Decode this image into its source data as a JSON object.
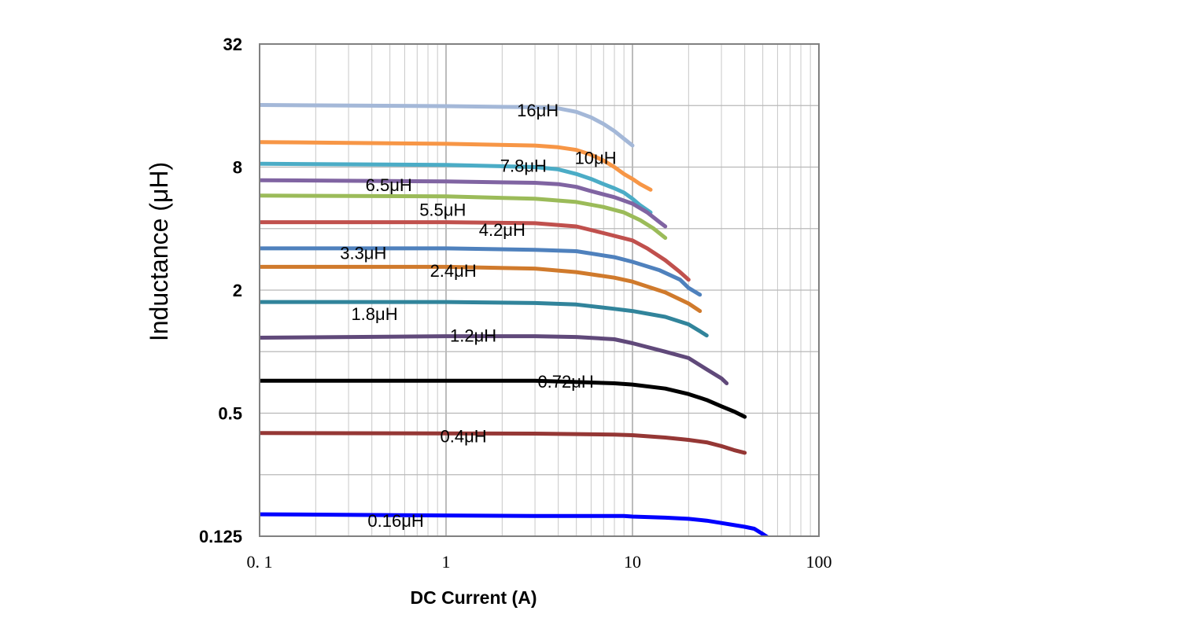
{
  "chart_data": {
    "type": "line",
    "xlabel": "DC Current (A)",
    "ylabel": "Inductance (μH)",
    "x_scale": "log",
    "y_scale": "log2",
    "xlim": [
      0.1,
      100
    ],
    "ylim": [
      0.125,
      32
    ],
    "x_ticks": [
      {
        "value": 0.1,
        "label": "0. 1"
      },
      {
        "value": 1,
        "label": "1"
      },
      {
        "value": 10,
        "label": "10"
      },
      {
        "value": 100,
        "label": "100"
      }
    ],
    "y_ticks": [
      {
        "value": 0.125,
        "label": "0.125"
      },
      {
        "value": 0.5,
        "label": "0.5"
      },
      {
        "value": 2,
        "label": "2"
      },
      {
        "value": 8,
        "label": "8"
      },
      {
        "value": 32,
        "label": "32"
      }
    ],
    "grid": true,
    "series": [
      {
        "name": "16μH",
        "color": "#a4b8d8",
        "label_at": [
          2.4,
          15.2
        ],
        "points": [
          [
            0.1,
            16.1
          ],
          [
            1,
            15.9
          ],
          [
            3,
            15.7
          ],
          [
            4,
            15.5
          ],
          [
            5,
            14.9
          ],
          [
            6,
            14.0
          ],
          [
            7,
            13.0
          ],
          [
            8,
            12.0
          ],
          [
            9,
            11.0
          ],
          [
            10,
            10.2
          ]
        ]
      },
      {
        "name": "10μH",
        "color": "#f79646",
        "label_at": [
          4.9,
          8.9
        ],
        "points": [
          [
            0.1,
            10.6
          ],
          [
            1,
            10.4
          ],
          [
            3,
            10.2
          ],
          [
            4,
            10.0
          ],
          [
            5,
            9.7
          ],
          [
            6,
            9.2
          ],
          [
            7,
            8.6
          ],
          [
            8,
            8.0
          ],
          [
            9,
            7.4
          ],
          [
            10,
            7.0
          ],
          [
            11,
            6.6
          ],
          [
            12.5,
            6.2
          ]
        ]
      },
      {
        "name": "7.8μH",
        "color": "#4bacc6",
        "label_at": [
          1.95,
          8.15
        ],
        "points": [
          [
            0.1,
            8.3
          ],
          [
            1,
            8.2
          ],
          [
            3,
            8.0
          ],
          [
            4,
            7.8
          ],
          [
            5,
            7.4
          ],
          [
            6,
            7.0
          ],
          [
            7,
            6.6
          ],
          [
            8,
            6.3
          ],
          [
            9,
            6.0
          ],
          [
            10,
            5.6
          ],
          [
            11,
            5.2
          ],
          [
            12.5,
            4.8
          ]
        ]
      },
      {
        "name": "6.5μH",
        "color": "#8064a2",
        "label_at": [
          0.37,
          6.55
        ],
        "points": [
          [
            0.1,
            6.9
          ],
          [
            1,
            6.8
          ],
          [
            3,
            6.7
          ],
          [
            4,
            6.6
          ],
          [
            5,
            6.4
          ],
          [
            6,
            6.1
          ],
          [
            8,
            5.7
          ],
          [
            10,
            5.3
          ],
          [
            12,
            4.8
          ],
          [
            14,
            4.3
          ],
          [
            15,
            4.1
          ]
        ]
      },
      {
        "name": "5.5μH",
        "color": "#9bbb59",
        "label_at": [
          0.72,
          4.95
        ],
        "points": [
          [
            0.1,
            5.8
          ],
          [
            1,
            5.75
          ],
          [
            3,
            5.6
          ],
          [
            5,
            5.4
          ],
          [
            7,
            5.1
          ],
          [
            9,
            4.8
          ],
          [
            11,
            4.4
          ],
          [
            13,
            4.0
          ],
          [
            15,
            3.6
          ]
        ]
      },
      {
        "name": "4.2μH",
        "color": "#c0504d",
        "label_at": [
          1.5,
          3.95
        ],
        "points": [
          [
            0.1,
            4.3
          ],
          [
            1,
            4.3
          ],
          [
            3,
            4.25
          ],
          [
            5,
            4.1
          ],
          [
            7,
            3.8
          ],
          [
            10,
            3.5
          ],
          [
            12,
            3.2
          ],
          [
            15,
            2.8
          ],
          [
            18,
            2.45
          ],
          [
            20,
            2.25
          ]
        ]
      },
      {
        "name": "3.3μH",
        "color": "#4f81bd",
        "label_at": [
          0.27,
          3.05
        ],
        "points": [
          [
            0.1,
            3.2
          ],
          [
            1,
            3.2
          ],
          [
            3,
            3.15
          ],
          [
            5,
            3.1
          ],
          [
            8,
            2.9
          ],
          [
            10,
            2.75
          ],
          [
            14,
            2.5
          ],
          [
            18,
            2.25
          ],
          [
            20,
            2.05
          ],
          [
            23,
            1.9
          ]
        ]
      },
      {
        "name": "2.4μH",
        "color": "#d07a2c",
        "label_at": [
          0.82,
          2.5
        ],
        "points": [
          [
            0.1,
            2.6
          ],
          [
            1,
            2.6
          ],
          [
            3,
            2.55
          ],
          [
            5,
            2.45
          ],
          [
            8,
            2.3
          ],
          [
            10,
            2.2
          ],
          [
            15,
            1.95
          ],
          [
            20,
            1.72
          ],
          [
            23,
            1.58
          ]
        ]
      },
      {
        "name": "1.8μH",
        "color": "#31849b",
        "label_at": [
          0.31,
          1.53
        ],
        "points": [
          [
            0.1,
            1.75
          ],
          [
            1,
            1.75
          ],
          [
            3,
            1.73
          ],
          [
            5,
            1.7
          ],
          [
            8,
            1.62
          ],
          [
            10,
            1.58
          ],
          [
            15,
            1.48
          ],
          [
            20,
            1.36
          ],
          [
            23,
            1.26
          ],
          [
            25,
            1.2
          ]
        ]
      },
      {
        "name": "1.2μH",
        "color": "#60497a",
        "label_at": [
          1.05,
          1.2
        ],
        "points": [
          [
            0.1,
            1.17
          ],
          [
            1,
            1.19
          ],
          [
            3,
            1.19
          ],
          [
            5,
            1.18
          ],
          [
            8,
            1.15
          ],
          [
            10,
            1.1
          ],
          [
            15,
            1.0
          ],
          [
            20,
            0.93
          ],
          [
            25,
            0.82
          ],
          [
            30,
            0.74
          ],
          [
            32,
            0.7
          ]
        ]
      },
      {
        "name": "0.72μH",
        "color": "#000000",
        "label_at": [
          3.1,
          0.715
        ],
        "points": [
          [
            0.1,
            0.72
          ],
          [
            1,
            0.72
          ],
          [
            3,
            0.72
          ],
          [
            5,
            0.71
          ],
          [
            8,
            0.7
          ],
          [
            10,
            0.69
          ],
          [
            15,
            0.66
          ],
          [
            20,
            0.62
          ],
          [
            25,
            0.58
          ],
          [
            30,
            0.54
          ],
          [
            35,
            0.51
          ],
          [
            40,
            0.48
          ]
        ]
      },
      {
        "name": "0.4μH",
        "color": "#953735",
        "label_at": [
          0.93,
          0.386
        ],
        "points": [
          [
            0.1,
            0.4
          ],
          [
            1,
            0.398
          ],
          [
            3,
            0.397
          ],
          [
            5,
            0.395
          ],
          [
            8,
            0.393
          ],
          [
            10,
            0.39
          ],
          [
            15,
            0.38
          ],
          [
            20,
            0.37
          ],
          [
            25,
            0.36
          ],
          [
            30,
            0.345
          ],
          [
            35,
            0.33
          ],
          [
            40,
            0.32
          ]
        ]
      },
      {
        "name": "0.16μH",
        "color": "#0000ff",
        "label_at": [
          0.38,
          0.149
        ],
        "points": [
          [
            0.1,
            0.16
          ],
          [
            1,
            0.158
          ],
          [
            3,
            0.157
          ],
          [
            5,
            0.157
          ],
          [
            9,
            0.157
          ],
          [
            10,
            0.156
          ],
          [
            15,
            0.154
          ],
          [
            20,
            0.152
          ],
          [
            25,
            0.149
          ],
          [
            30,
            0.145
          ],
          [
            40,
            0.139
          ],
          [
            45,
            0.136
          ],
          [
            50,
            0.128
          ],
          [
            55,
            0.121
          ]
        ]
      }
    ]
  }
}
